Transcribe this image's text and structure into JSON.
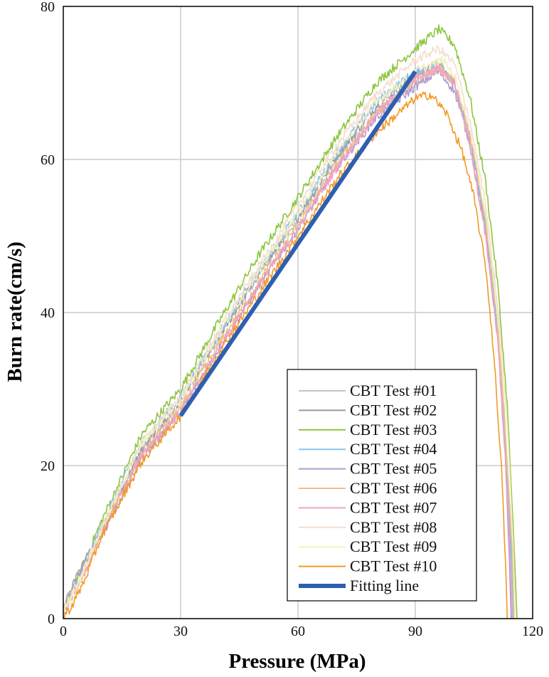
{
  "chart_data": {
    "type": "line",
    "title": "",
    "xlabel": "Pressure (MPa)",
    "ylabel": "Burn rate(cm/s)",
    "xlim": [
      0,
      120
    ],
    "ylim": [
      0,
      80
    ],
    "xticks": [
      "0",
      "30",
      "60",
      "90",
      "120"
    ],
    "yticks": [
      "0",
      "20",
      "40",
      "60",
      "80"
    ],
    "grid": true,
    "legend_position": "bottom-right",
    "series": [
      {
        "name": "CBT Test #01",
        "color": "#c4c4c4",
        "points": [
          [
            0,
            1
          ],
          [
            5,
            6
          ],
          [
            10,
            12
          ],
          [
            20,
            22
          ],
          [
            30,
            28
          ],
          [
            40,
            37
          ],
          [
            50,
            45
          ],
          [
            60,
            52
          ],
          [
            70,
            60
          ],
          [
            80,
            66
          ],
          [
            90,
            70
          ],
          [
            96,
            72.5
          ],
          [
            100,
            70
          ],
          [
            104,
            63
          ],
          [
            108,
            52
          ],
          [
            111,
            40
          ],
          [
            113,
            25
          ],
          [
            114.5,
            10
          ],
          [
            115,
            0
          ]
        ]
      },
      {
        "name": "CBT Test #02",
        "color": "#9a9aa6",
        "points": [
          [
            0,
            1
          ],
          [
            5,
            6.5
          ],
          [
            10,
            12
          ],
          [
            20,
            22
          ],
          [
            30,
            28.5
          ],
          [
            40,
            37
          ],
          [
            50,
            45
          ],
          [
            60,
            52.5
          ],
          [
            70,
            60.5
          ],
          [
            80,
            67
          ],
          [
            90,
            71
          ],
          [
            96,
            72.5
          ],
          [
            100,
            70
          ],
          [
            104,
            63
          ],
          [
            108,
            51
          ],
          [
            111,
            38
          ],
          [
            113,
            22
          ],
          [
            114.5,
            8
          ],
          [
            115,
            0
          ]
        ]
      },
      {
        "name": "CBT Test #03",
        "color": "#8cc63f",
        "points": [
          [
            0,
            1.2
          ],
          [
            5,
            7
          ],
          [
            10,
            13
          ],
          [
            20,
            24
          ],
          [
            30,
            30
          ],
          [
            40,
            39
          ],
          [
            50,
            47.5
          ],
          [
            60,
            55
          ],
          [
            70,
            63
          ],
          [
            80,
            70
          ],
          [
            90,
            74.5
          ],
          [
            96,
            77
          ],
          [
            100,
            75
          ],
          [
            104,
            68
          ],
          [
            108,
            57
          ],
          [
            111,
            44
          ],
          [
            113.5,
            28
          ],
          [
            115,
            12
          ],
          [
            116,
            0
          ]
        ]
      },
      {
        "name": "CBT Test #04",
        "color": "#8ec4e8",
        "points": [
          [
            0,
            1
          ],
          [
            5,
            6
          ],
          [
            10,
            12.5
          ],
          [
            20,
            23
          ],
          [
            30,
            29
          ],
          [
            40,
            37.5
          ],
          [
            50,
            45.5
          ],
          [
            60,
            53
          ],
          [
            70,
            61
          ],
          [
            80,
            67.5
          ],
          [
            90,
            71.5
          ],
          [
            96,
            72.5
          ],
          [
            100,
            70
          ],
          [
            104,
            63
          ],
          [
            108,
            51
          ],
          [
            111,
            38
          ],
          [
            113,
            23
          ],
          [
            114.5,
            9
          ],
          [
            115,
            0
          ]
        ]
      },
      {
        "name": "CBT Test #05",
        "color": "#b19ad0",
        "points": [
          [
            0,
            1.5
          ],
          [
            3,
            5
          ],
          [
            6,
            8
          ],
          [
            10,
            11
          ],
          [
            20,
            21
          ],
          [
            30,
            27
          ],
          [
            40,
            35.5
          ],
          [
            50,
            43.5
          ],
          [
            60,
            51
          ],
          [
            70,
            59
          ],
          [
            80,
            65.5
          ],
          [
            90,
            69.5
          ],
          [
            96,
            71.5
          ],
          [
            100,
            69
          ],
          [
            104,
            62
          ],
          [
            108,
            50
          ],
          [
            111,
            37
          ],
          [
            113,
            21
          ],
          [
            114,
            8
          ],
          [
            114.5,
            0
          ]
        ]
      },
      {
        "name": "CBT Test #06",
        "color": "#f0c080",
        "points": [
          [
            0,
            0.8
          ],
          [
            5,
            5.5
          ],
          [
            10,
            11.5
          ],
          [
            20,
            21.5
          ],
          [
            30,
            27.5
          ],
          [
            40,
            36
          ],
          [
            50,
            44
          ],
          [
            60,
            51.5
          ],
          [
            70,
            59.5
          ],
          [
            80,
            66
          ],
          [
            90,
            70.5
          ],
          [
            96,
            72
          ],
          [
            100,
            70
          ],
          [
            104,
            63
          ],
          [
            108,
            52
          ],
          [
            111,
            39
          ],
          [
            113,
            24
          ],
          [
            114.8,
            9
          ],
          [
            115.3,
            0
          ]
        ]
      },
      {
        "name": "CBT Test #07",
        "color": "#f1a1c6",
        "points": [
          [
            0,
            0.8
          ],
          [
            5,
            5.5
          ],
          [
            10,
            11.5
          ],
          [
            20,
            21.5
          ],
          [
            30,
            27
          ],
          [
            40,
            35.5
          ],
          [
            50,
            43.5
          ],
          [
            60,
            51
          ],
          [
            70,
            59
          ],
          [
            80,
            66
          ],
          [
            90,
            70.5
          ],
          [
            96,
            72
          ],
          [
            100,
            70
          ],
          [
            104,
            62
          ],
          [
            108,
            50
          ],
          [
            111,
            37
          ],
          [
            113,
            21
          ],
          [
            114.3,
            7
          ],
          [
            114.8,
            0
          ]
        ]
      },
      {
        "name": "CBT Test #08",
        "color": "#f4ddd0",
        "points": [
          [
            0,
            1
          ],
          [
            5,
            6
          ],
          [
            10,
            12
          ],
          [
            20,
            23
          ],
          [
            30,
            29
          ],
          [
            40,
            38
          ],
          [
            50,
            46
          ],
          [
            60,
            54
          ],
          [
            70,
            62
          ],
          [
            80,
            68.5
          ],
          [
            90,
            73
          ],
          [
            96,
            74.5
          ],
          [
            100,
            72.5
          ],
          [
            104,
            65
          ],
          [
            108,
            54
          ],
          [
            111,
            41
          ],
          [
            113.5,
            26
          ],
          [
            115,
            10
          ],
          [
            115.5,
            0
          ]
        ]
      },
      {
        "name": "CBT Test #09",
        "color": "#f4efc0",
        "points": [
          [
            0,
            1
          ],
          [
            5,
            6
          ],
          [
            10,
            12
          ],
          [
            20,
            23
          ],
          [
            30,
            28.5
          ],
          [
            40,
            37.5
          ],
          [
            50,
            45.5
          ],
          [
            60,
            53
          ],
          [
            70,
            61
          ],
          [
            80,
            67.5
          ],
          [
            90,
            71.5
          ],
          [
            97,
            73
          ],
          [
            100,
            71
          ],
          [
            104,
            64
          ],
          [
            108,
            53
          ],
          [
            111,
            40
          ],
          [
            113.5,
            25
          ],
          [
            115,
            10
          ],
          [
            115.5,
            0
          ]
        ]
      },
      {
        "name": "CBT Test #10",
        "color": "#f39a26",
        "points": [
          [
            0,
            0.3
          ],
          [
            2,
            1.5
          ],
          [
            5,
            4.5
          ],
          [
            10,
            11
          ],
          [
            20,
            20.5
          ],
          [
            30,
            26.5
          ],
          [
            40,
            35
          ],
          [
            50,
            42.5
          ],
          [
            60,
            50
          ],
          [
            70,
            57.5
          ],
          [
            80,
            63.5
          ],
          [
            90,
            68
          ],
          [
            94,
            68.5
          ],
          [
            98,
            66
          ],
          [
            102,
            61
          ],
          [
            105,
            55
          ],
          [
            108,
            46
          ],
          [
            110,
            35
          ],
          [
            112,
            20
          ],
          [
            113,
            8
          ],
          [
            113.5,
            0
          ]
        ]
      },
      {
        "name": "Fitting line",
        "color": "#2e5fb0",
        "points": [
          [
            30,
            26.5
          ],
          [
            90,
            71.5
          ]
        ]
      }
    ]
  }
}
